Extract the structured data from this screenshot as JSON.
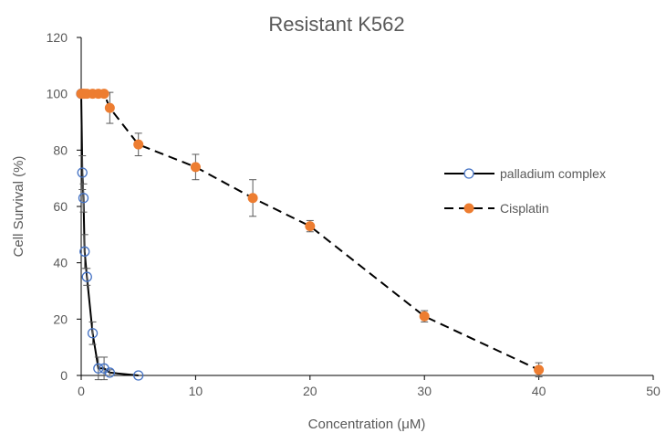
{
  "chart_data": {
    "type": "scatter",
    "title": "Resistant K562",
    "xlabel": "Concentration (μM)",
    "ylabel": "Cell Survival (%)",
    "xlim": [
      0,
      50
    ],
    "ylim": [
      0,
      120
    ],
    "x_ticks": [
      0,
      10,
      20,
      30,
      40,
      50
    ],
    "y_ticks": [
      0,
      20,
      40,
      60,
      80,
      100,
      120
    ],
    "grid": false,
    "legend_position": "right",
    "series": [
      {
        "name": "palladium complex",
        "line_style": "solid",
        "marker": "open-circle",
        "color": "#4472c4",
        "x": [
          0,
          0.1,
          0.2,
          0.3,
          0.5,
          1,
          1.5,
          2,
          2.5,
          5
        ],
        "y": [
          100,
          72,
          63,
          44,
          35,
          15,
          2.5,
          2.5,
          1,
          0
        ],
        "error": [
          0,
          6,
          5,
          6,
          3,
          4,
          4,
          4,
          1,
          0
        ]
      },
      {
        "name": "Cisplatin",
        "line_style": "dashed",
        "marker": "filled-circle",
        "color": "#ed7d31",
        "x": [
          0,
          0.1,
          0.2,
          0.3,
          0.5,
          1,
          1.5,
          2,
          2.5,
          5,
          10,
          15,
          20,
          30,
          40
        ],
        "y": [
          100,
          100,
          100,
          100,
          100,
          100,
          100,
          100,
          95,
          82,
          74,
          63,
          53,
          21,
          2
        ],
        "error": [
          0,
          0,
          0,
          0,
          0,
          0,
          0,
          0,
          5.5,
          4,
          4.5,
          6.5,
          2,
          2,
          2.5
        ]
      }
    ]
  }
}
